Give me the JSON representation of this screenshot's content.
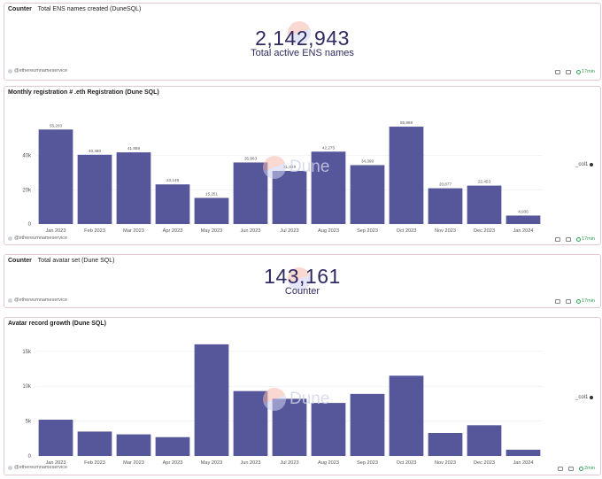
{
  "panel1": {
    "type_label": "Counter",
    "title": "Total ENS names created (DuneSQL)",
    "value": "2,142,943",
    "label": "Total active ENS names",
    "author": "@ethereumnameservice",
    "badge": "17min"
  },
  "panel2": {
    "title": "Monthly registration #  .eth Registration (Dune SQL)",
    "author": "@ethereumnameservice",
    "badge": "17min",
    "legend": "_col1",
    "watermark": "Dune"
  },
  "panel3": {
    "type_label": "Counter",
    "title": "Total avatar set (Dune SQL)",
    "value": "143,161",
    "label": "Counter",
    "author": "@ethereumnameservice",
    "badge": "17min"
  },
  "panel4": {
    "title": "Avatar record growth (Dune SQL)",
    "author": "@ethereumnameservice",
    "badge": "2min",
    "legend": "_col1",
    "watermark": "Dune"
  },
  "colors": {
    "bar": "#56579b",
    "axis_text": "#555555",
    "border": "#e3c9cf"
  },
  "chart_data": [
    {
      "type": "bar",
      "title": "Monthly registration #  .eth Registration (Dune SQL)",
      "categories": [
        "Jan 2023",
        "Feb 2023",
        "Mar 2023",
        "Apr 2023",
        "May 2023",
        "Jun 2023",
        "Jul 2023",
        "Aug 2023",
        "Sep 2023",
        "Oct 2023",
        "Nov 2023",
        "Dec 2023",
        "Jan 2024"
      ],
      "series": [
        {
          "name": "_col1",
          "values": [
            55203,
            40460,
            41859,
            23149,
            15251,
            35963,
            31029,
            42275,
            34399,
            56869,
            20877,
            22453,
            4936
          ]
        }
      ],
      "data_labels": [
        "55,203",
        "40,460",
        "41,859",
        "23,149",
        "15,251",
        "35,963",
        "31,029",
        "42,275",
        "34,399",
        "56,869",
        "20,877",
        "22,453",
        "4,936"
      ],
      "yticks": [
        0,
        20000,
        40000
      ],
      "ytick_labels": [
        "0",
        "20k",
        "40k"
      ],
      "ylim": [
        0,
        60000
      ],
      "legend_position": "right"
    },
    {
      "type": "bar",
      "title": "Avatar record growth (Dune SQL)",
      "categories": [
        "Jan 2023",
        "Feb 2023",
        "Mar 2023",
        "Apr 2023",
        "May 2023",
        "Jun 2023",
        "Jul 2023",
        "Aug 2023",
        "Sep 2023",
        "Oct 2023",
        "Nov 2023",
        "Dec 2023",
        "Jan 2024"
      ],
      "series": [
        {
          "name": "_col1",
          "values": [
            5200,
            3500,
            3100,
            2700,
            16000,
            9300,
            8200,
            7600,
            8900,
            11500,
            3300,
            4400,
            900
          ]
        }
      ],
      "yticks": [
        0,
        5000,
        10000,
        15000
      ],
      "ytick_labels": [
        "0",
        "5k",
        "10k",
        "15k"
      ],
      "ylim": [
        0,
        17000
      ],
      "legend_position": "right"
    }
  ]
}
